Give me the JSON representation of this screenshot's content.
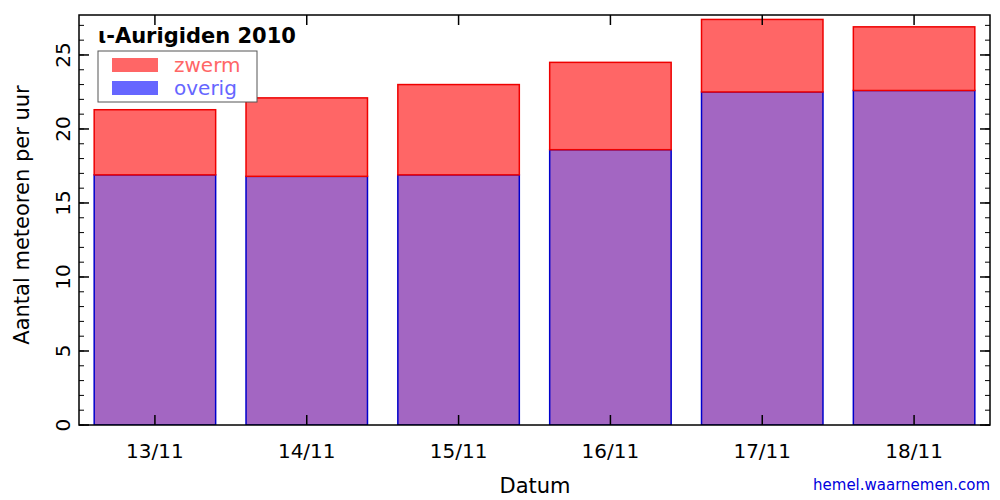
{
  "chart_data": {
    "type": "bar",
    "title": "ι-Aurigiden 2010",
    "x_label": "Datum",
    "y_label": "Aantal meteoren per uur",
    "annotation": "hemel.waarnemen.com",
    "categories": [
      "13/11",
      "14/11",
      "15/11",
      "16/11",
      "17/11",
      "18/11"
    ],
    "series": [
      {
        "name": "overig",
        "color": "#6666ff",
        "values": [
          16.9,
          16.8,
          16.9,
          18.6,
          22.5,
          22.6
        ]
      },
      {
        "name": "zwerm",
        "color": "#ff6666",
        "values": [
          4.4,
          5.3,
          6.1,
          5.9,
          4.9,
          4.3
        ]
      }
    ],
    "stacked": true,
    "legend": "upper left",
    "grid": false,
    "ylim": [
      0,
      27.7
    ],
    "yticks": [
      0,
      5,
      10,
      15,
      20,
      25
    ]
  }
}
